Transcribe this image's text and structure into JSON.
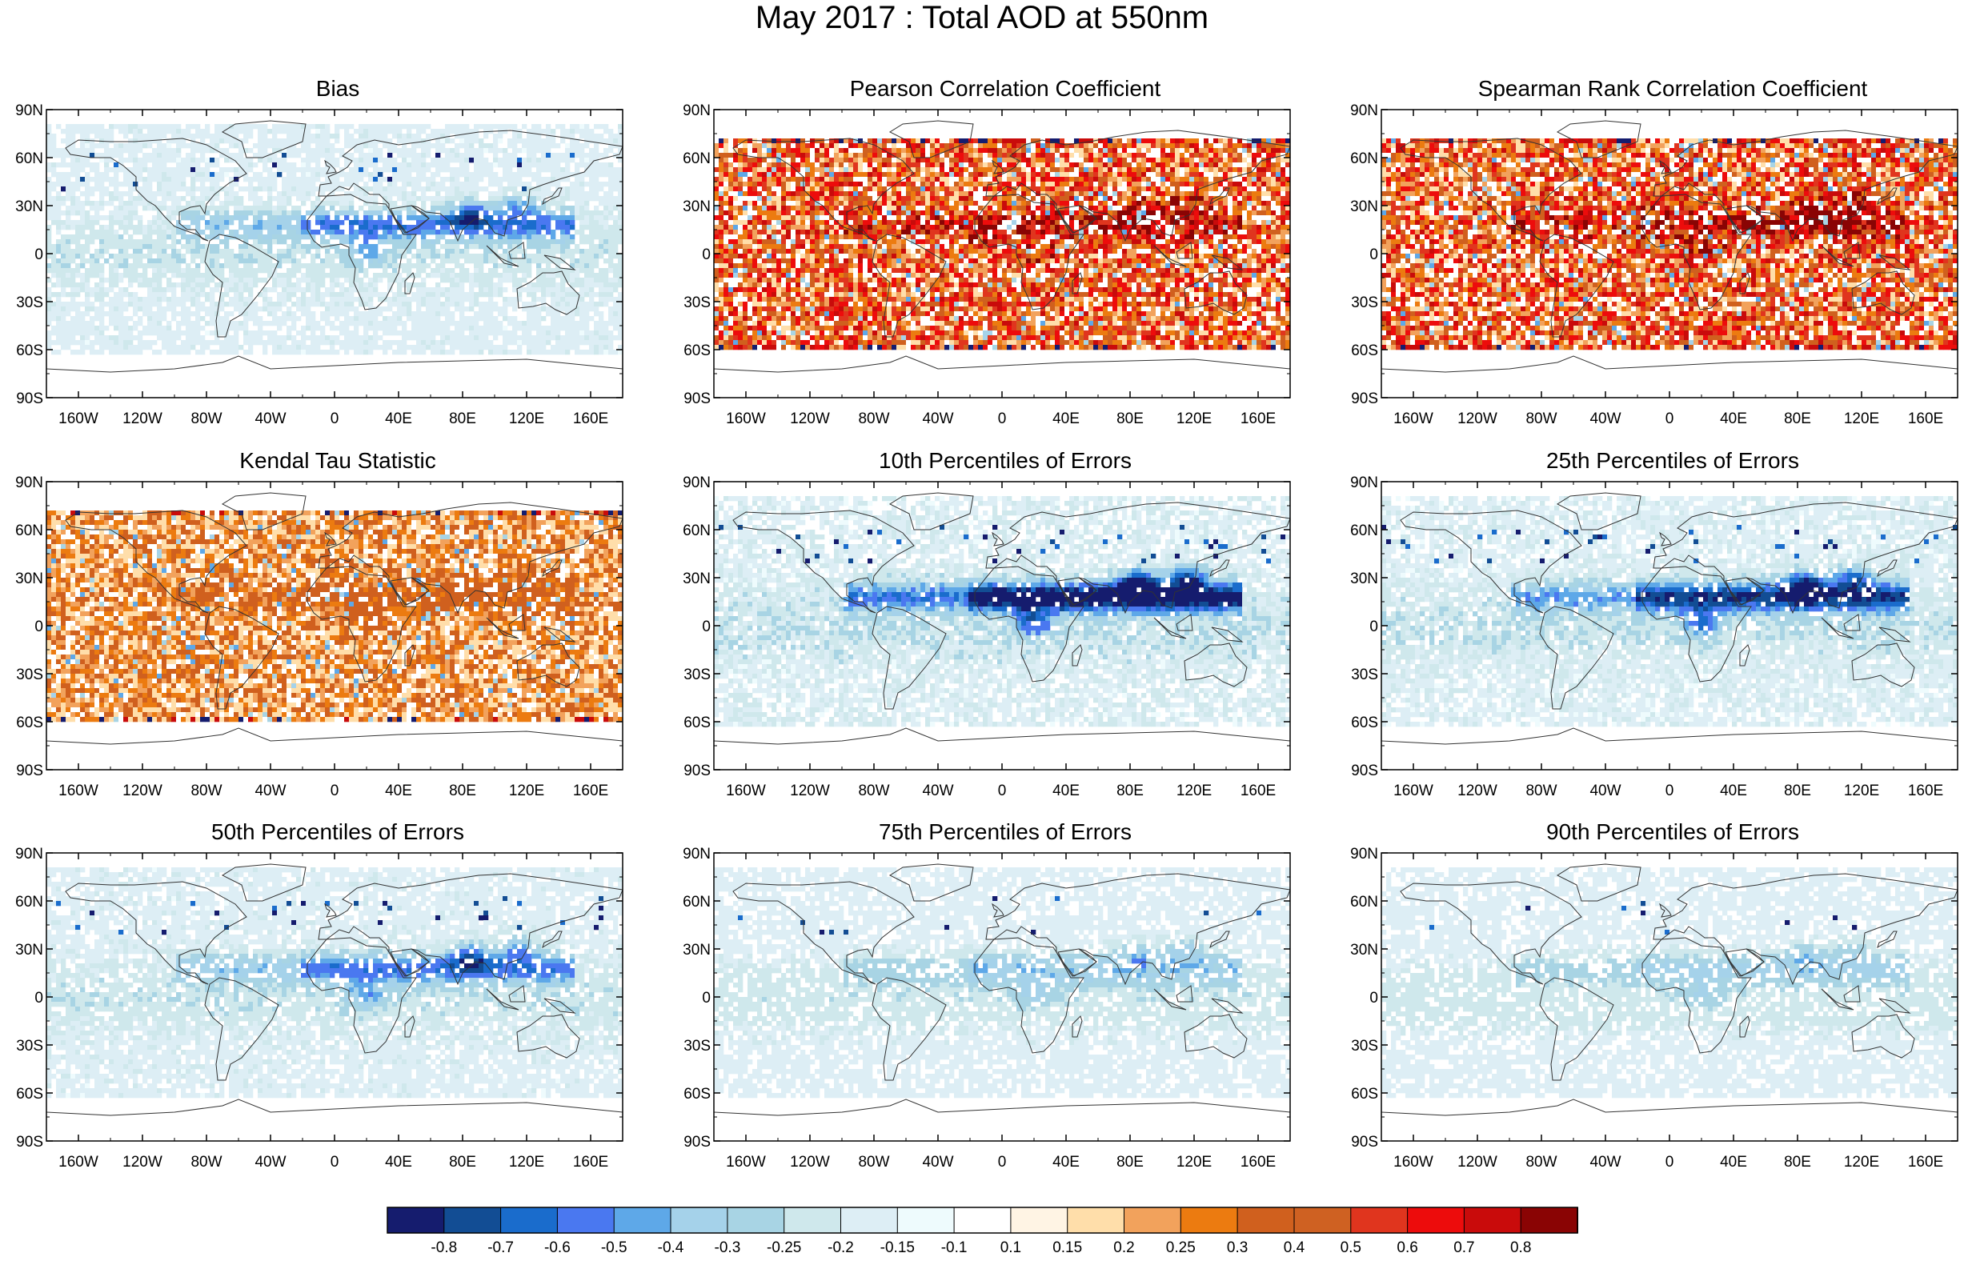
{
  "title": "May 2017 : Total AOD at 550nm",
  "panels": [
    {
      "title": "Bias",
      "kind": "error",
      "intensity": 0.55
    },
    {
      "title": "Pearson Correlation Coefficient",
      "kind": "corr",
      "intensity": 1.0
    },
    {
      "title": "Spearman Rank Correlation Coefficient",
      "kind": "corr",
      "intensity": 1.0
    },
    {
      "title": "Kendal Tau Statistic",
      "kind": "corr",
      "intensity": 0.75
    },
    {
      "title": "10th Percentiles of Errors",
      "kind": "error",
      "intensity": 1.0
    },
    {
      "title": "25th Percentiles of Errors",
      "kind": "error",
      "intensity": 0.8
    },
    {
      "title": "50th Percentiles of Errors",
      "kind": "error",
      "intensity": 0.55
    },
    {
      "title": "75th Percentiles of Errors",
      "kind": "error",
      "intensity": 0.35
    },
    {
      "title": "90th Percentiles of Errors",
      "kind": "error",
      "intensity": 0.28
    }
  ],
  "axes": {
    "lat_labels": [
      "90N",
      "60N",
      "30N",
      "0",
      "30S",
      "60S",
      "90S"
    ],
    "lon_labels": [
      "160W",
      "120W",
      "80W",
      "40W",
      "0",
      "40E",
      "80E",
      "120E",
      "160E"
    ]
  },
  "colorbar": {
    "colors": [
      "#151c6e",
      "#124d94",
      "#1a6ccc",
      "#4a78f0",
      "#5ea8e8",
      "#a5d2ea",
      "#a8d4e4",
      "#cfe8ec",
      "#ddeef5",
      "#eefbfd",
      "#ffffff",
      "#fff4e4",
      "#ffdeaa",
      "#f2a25c",
      "#ec7b10",
      "#d0601e",
      "#cf6122",
      "#e0351e",
      "#ed0c0c",
      "#c90b0b",
      "#8a0404"
    ],
    "labels": [
      "-0.8",
      "-0.7",
      "-0.6",
      "-0.5",
      "-0.4",
      "-0.3",
      "-0.25",
      "-0.2",
      "-0.15",
      "-0.1",
      "0.1",
      "0.15",
      "0.2",
      "0.25",
      "0.3",
      "0.4",
      "0.5",
      "0.6",
      "0.7",
      "0.8"
    ]
  }
}
